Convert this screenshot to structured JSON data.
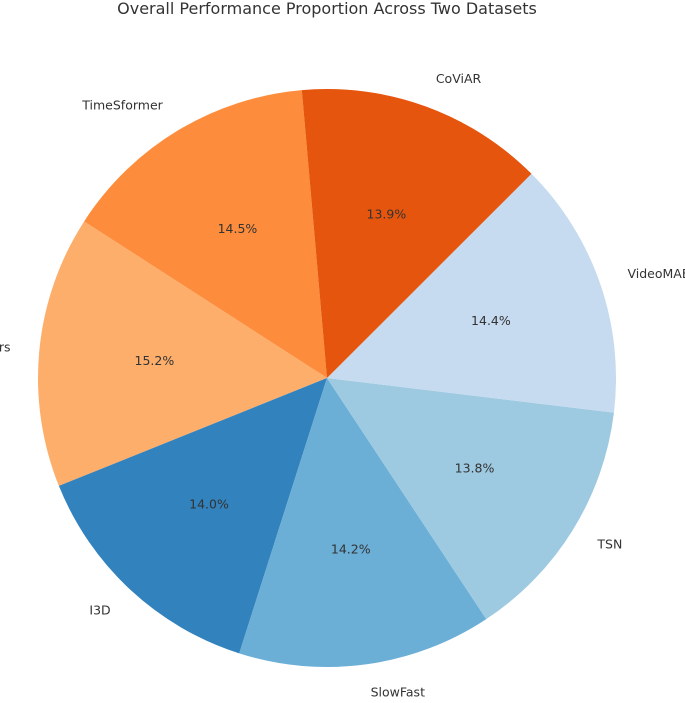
{
  "chart_data": {
    "type": "pie",
    "title": "Overall Performance Proportion Across Two Datasets",
    "start_angle_deg": 95,
    "direction": "counterclockwise",
    "slices": [
      {
        "label": "TimeSformer",
        "value": 14.5,
        "pct_label": "14.5%",
        "color": "#fd8d3c"
      },
      {
        "label": "Ours",
        "value": 15.2,
        "pct_label": "15.2%",
        "color": "#fdae6b"
      },
      {
        "label": "I3D",
        "value": 14.0,
        "pct_label": "14.0%",
        "color": "#3182bd"
      },
      {
        "label": "SlowFast",
        "value": 14.2,
        "pct_label": "14.2%",
        "color": "#6baed6"
      },
      {
        "label": "TSN",
        "value": 13.8,
        "pct_label": "13.8%",
        "color": "#9ecae1"
      },
      {
        "label": "VideoMAE",
        "value": 14.4,
        "pct_label": "14.4%",
        "color": "#c6dbef"
      },
      {
        "label": "CoViAR",
        "value": 13.9,
        "pct_label": "13.9%",
        "color": "#e6550d"
      }
    ]
  }
}
